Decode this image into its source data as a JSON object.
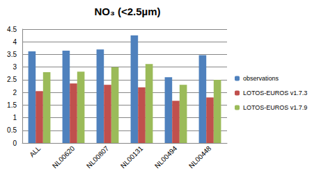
{
  "chart_data": {
    "type": "bar",
    "title": "NO₃ (<2.5µm)",
    "categories": [
      "ALL",
      "NL00620",
      "NL00807",
      "NL00131",
      "NL00494",
      "NL00448"
    ],
    "series": [
      {
        "name": "observations",
        "color": "#4f81bd",
        "values": [
          3.62,
          3.65,
          3.7,
          4.25,
          2.6,
          3.47
        ]
      },
      {
        "name": "LOTOS-EUROS v1.7.3",
        "color": "#c0504d",
        "values": [
          2.05,
          2.35,
          2.3,
          2.2,
          1.67,
          1.8
        ]
      },
      {
        "name": "LOTOS-EUROS v1.7.9",
        "color": "#9bbb59",
        "values": [
          2.8,
          2.82,
          3.0,
          3.12,
          2.3,
          2.5
        ]
      }
    ],
    "ylim": [
      0,
      4.5
    ],
    "yticks": [
      0,
      0.5,
      1,
      1.5,
      2,
      2.5,
      3,
      3.5,
      4,
      4.5
    ],
    "grid": true,
    "legend": "right"
  }
}
